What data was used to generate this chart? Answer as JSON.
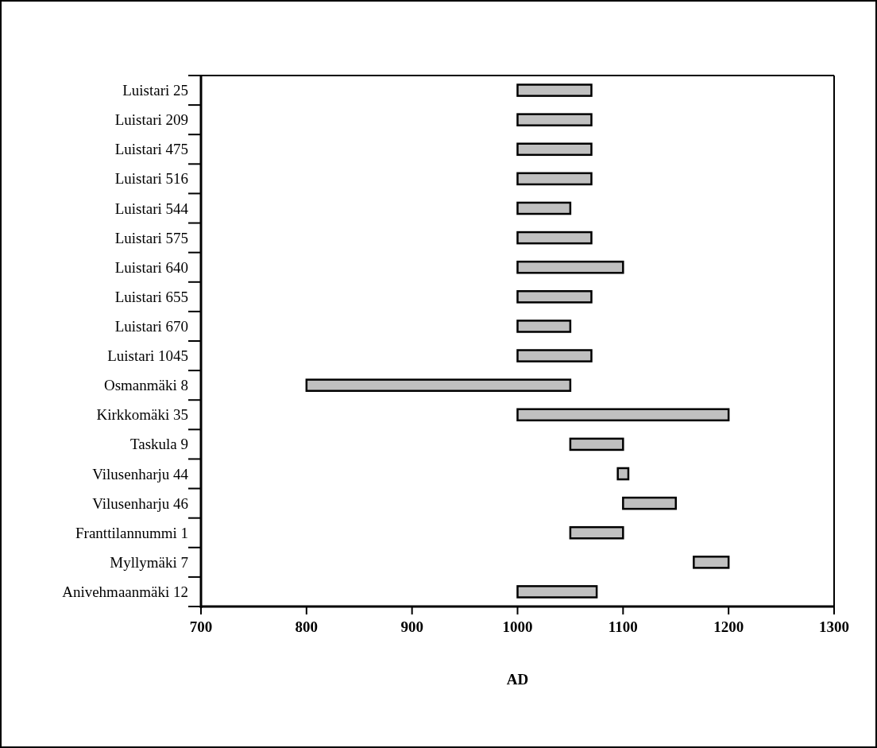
{
  "chart_data": {
    "type": "bar",
    "orientation": "horizontal",
    "xlabel": "AD",
    "categories": [
      "Luistari 25",
      "Luistari 209",
      "Luistari 475",
      "Luistari 516",
      "Luistari 544",
      "Luistari 575",
      "Luistari 640",
      "Luistari 655",
      "Luistari 670",
      "Luistari 1045",
      "Osmanmäki 8",
      "Kirkkomäki 35",
      "Taskula 9",
      "Vilusenharju 44",
      "Vilusenharju 46",
      "Franttilannummi 1",
      "Myllymäki 7",
      "Anivehmaanmäki 12"
    ],
    "base": [
      1000,
      1000,
      1000,
      1000,
      1000,
      1000,
      1000,
      1000,
      1000,
      1000,
      800,
      1000,
      1050,
      1095,
      1100,
      1050,
      1167,
      1000
    ],
    "values": [
      70,
      70,
      70,
      70,
      50,
      70,
      100,
      70,
      50,
      70,
      250,
      200,
      50,
      10,
      50,
      50,
      33,
      75
    ],
    "color": "#c0c0c0",
    "xlim": [
      700,
      1300
    ],
    "xticks": [
      700,
      800,
      900,
      1000,
      1100,
      1200,
      1300
    ]
  }
}
